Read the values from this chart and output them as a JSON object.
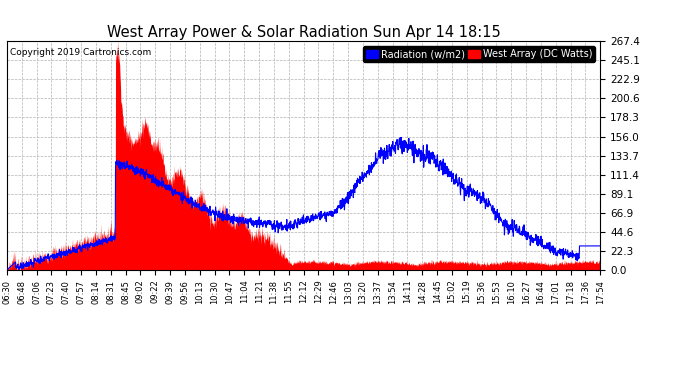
{
  "title": "West Array Power & Solar Radiation Sun Apr 14 18:15",
  "copyright": "Copyright 2019 Cartronics.com",
  "legend_radiation": "Radiation (w/m2)",
  "legend_west": "West Array (DC Watts)",
  "yticks": [
    0.0,
    22.3,
    44.6,
    66.9,
    89.1,
    111.4,
    133.7,
    156.0,
    178.3,
    200.6,
    222.9,
    245.1,
    267.4
  ],
  "ymax": 267.4,
  "ymin": 0.0,
  "background_color": "#ffffff",
  "plot_bg_color": "#ffffff",
  "radiation_fill_color": "#ff0000",
  "radiation_line_color": "#ff0000",
  "west_line_color": "#0000ff",
  "grid_color": "#aaaaaa",
  "title_color": "#000000",
  "xtick_labels": [
    "06:30",
    "06:48",
    "07:06",
    "07:23",
    "07:40",
    "07:57",
    "08:14",
    "08:31",
    "08:45",
    "09:02",
    "09:22",
    "09:39",
    "09:56",
    "10:13",
    "10:30",
    "10:47",
    "11:04",
    "11:21",
    "11:38",
    "11:55",
    "12:12",
    "12:29",
    "12:46",
    "13:03",
    "13:20",
    "13:37",
    "13:54",
    "14:11",
    "14:28",
    "14:45",
    "15:02",
    "15:19",
    "15:36",
    "15:53",
    "16:10",
    "16:27",
    "16:44",
    "17:01",
    "17:18",
    "17:36",
    "17:54"
  ]
}
